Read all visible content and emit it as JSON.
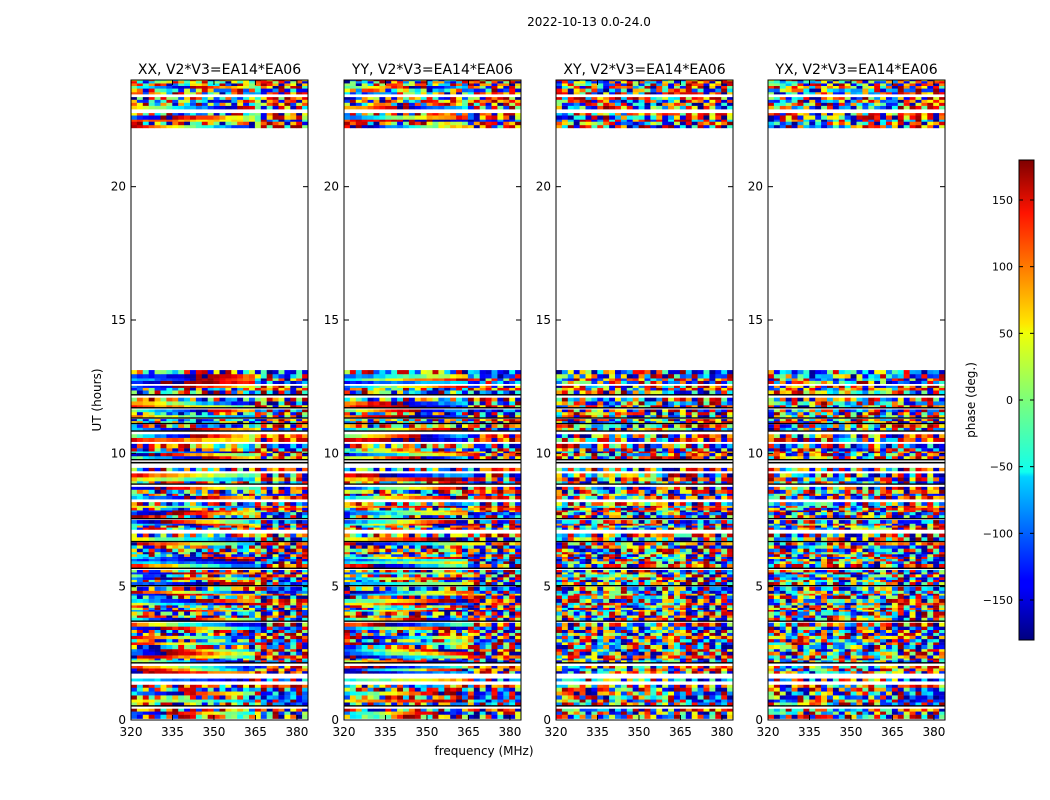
{
  "suptitle": "2022-10-13 0.0-24.0",
  "chart_data": {
    "type": "heatmap",
    "title": "2022-10-13 0.0-24.0",
    "xlabel": "frequency (MHz)",
    "ylabel": "UT (hours)",
    "xlim": [
      320,
      384
    ],
    "ylim": [
      0,
      24
    ],
    "xticks": [
      320,
      335,
      350,
      365,
      380
    ],
    "yticks": [
      0,
      5,
      10,
      15,
      20
    ],
    "data_gap_hours": [
      13.0,
      22.2
    ],
    "panels": [
      {
        "title": "XX, V2*V3=EA14*EA06",
        "polarization": "XX",
        "coherent_phase": true
      },
      {
        "title": "YY, V2*V3=EA14*EA06",
        "polarization": "YY",
        "coherent_phase": true
      },
      {
        "title": "XY, V2*V3=EA14*EA06",
        "polarization": "XY",
        "coherent_phase": false
      },
      {
        "title": "YX, V2*V3=EA14*EA06",
        "polarization": "YX",
        "coherent_phase": false
      }
    ],
    "colorbar": {
      "label": "phase (deg.)",
      "range": [
        -180,
        180
      ],
      "ticks": [
        -150,
        -100,
        -50,
        0,
        50,
        100,
        150
      ],
      "colormap": "jet"
    }
  }
}
